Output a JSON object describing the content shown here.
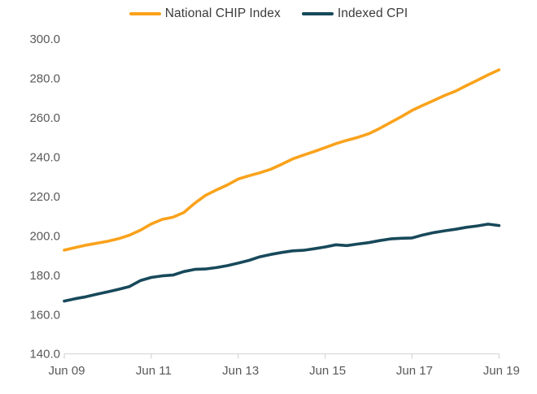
{
  "chart_data": {
    "type": "line",
    "title": "",
    "legend_position": "top",
    "grid": false,
    "background": "#ffffff",
    "axis_color": "#d9d9d9",
    "tick_color": "#d9d9d9",
    "axis_label_color": "#595959",
    "legend_text_color": "#3b3b3b",
    "ylim": [
      140,
      300
    ],
    "y_tick_labels": [
      "140.0",
      "160.0",
      "180.0",
      "200.0",
      "220.0",
      "240.0",
      "260.0",
      "280.0",
      "300.0"
    ],
    "y_tick_values": [
      140,
      160,
      180,
      200,
      220,
      240,
      260,
      280,
      300
    ],
    "x_tick_labels": [
      "Jun 09",
      "Jun 11",
      "Jun 13",
      "Jun 15",
      "Jun 17",
      "Jun 19"
    ],
    "x_points_per_tick": 8,
    "x_frequency": "quarterly",
    "series": [
      {
        "name": "National CHIP Index",
        "color": "#FAA21B",
        "values": [
          192.7,
          194.0,
          195.2,
          196.2,
          197.2,
          198.5,
          200.3,
          202.8,
          206.0,
          208.3,
          209.4,
          211.8,
          216.5,
          220.5,
          223.3,
          225.8,
          228.8,
          230.5,
          232.0,
          233.8,
          236.3,
          239.0,
          241.0,
          242.8,
          244.8,
          246.8,
          248.5,
          250.0,
          251.8,
          254.5,
          257.5,
          260.5,
          263.7,
          266.3,
          268.8,
          271.3,
          273.5,
          276.3,
          279.0,
          281.8,
          284.3
        ]
      },
      {
        "name": "Indexed CPI",
        "color": "#17495A",
        "values": [
          166.8,
          168.0,
          169.0,
          170.3,
          171.5,
          172.8,
          174.2,
          177.2,
          178.8,
          179.6,
          180.0,
          181.8,
          182.9,
          183.1,
          183.8,
          184.8,
          186.1,
          187.5,
          189.3,
          190.5,
          191.5,
          192.3,
          192.6,
          193.4,
          194.3,
          195.4,
          195.0,
          195.8,
          196.5,
          197.5,
          198.4,
          198.7,
          198.9,
          200.4,
          201.6,
          202.5,
          203.3,
          204.3,
          205.0,
          205.9,
          205.2
        ]
      }
    ]
  }
}
